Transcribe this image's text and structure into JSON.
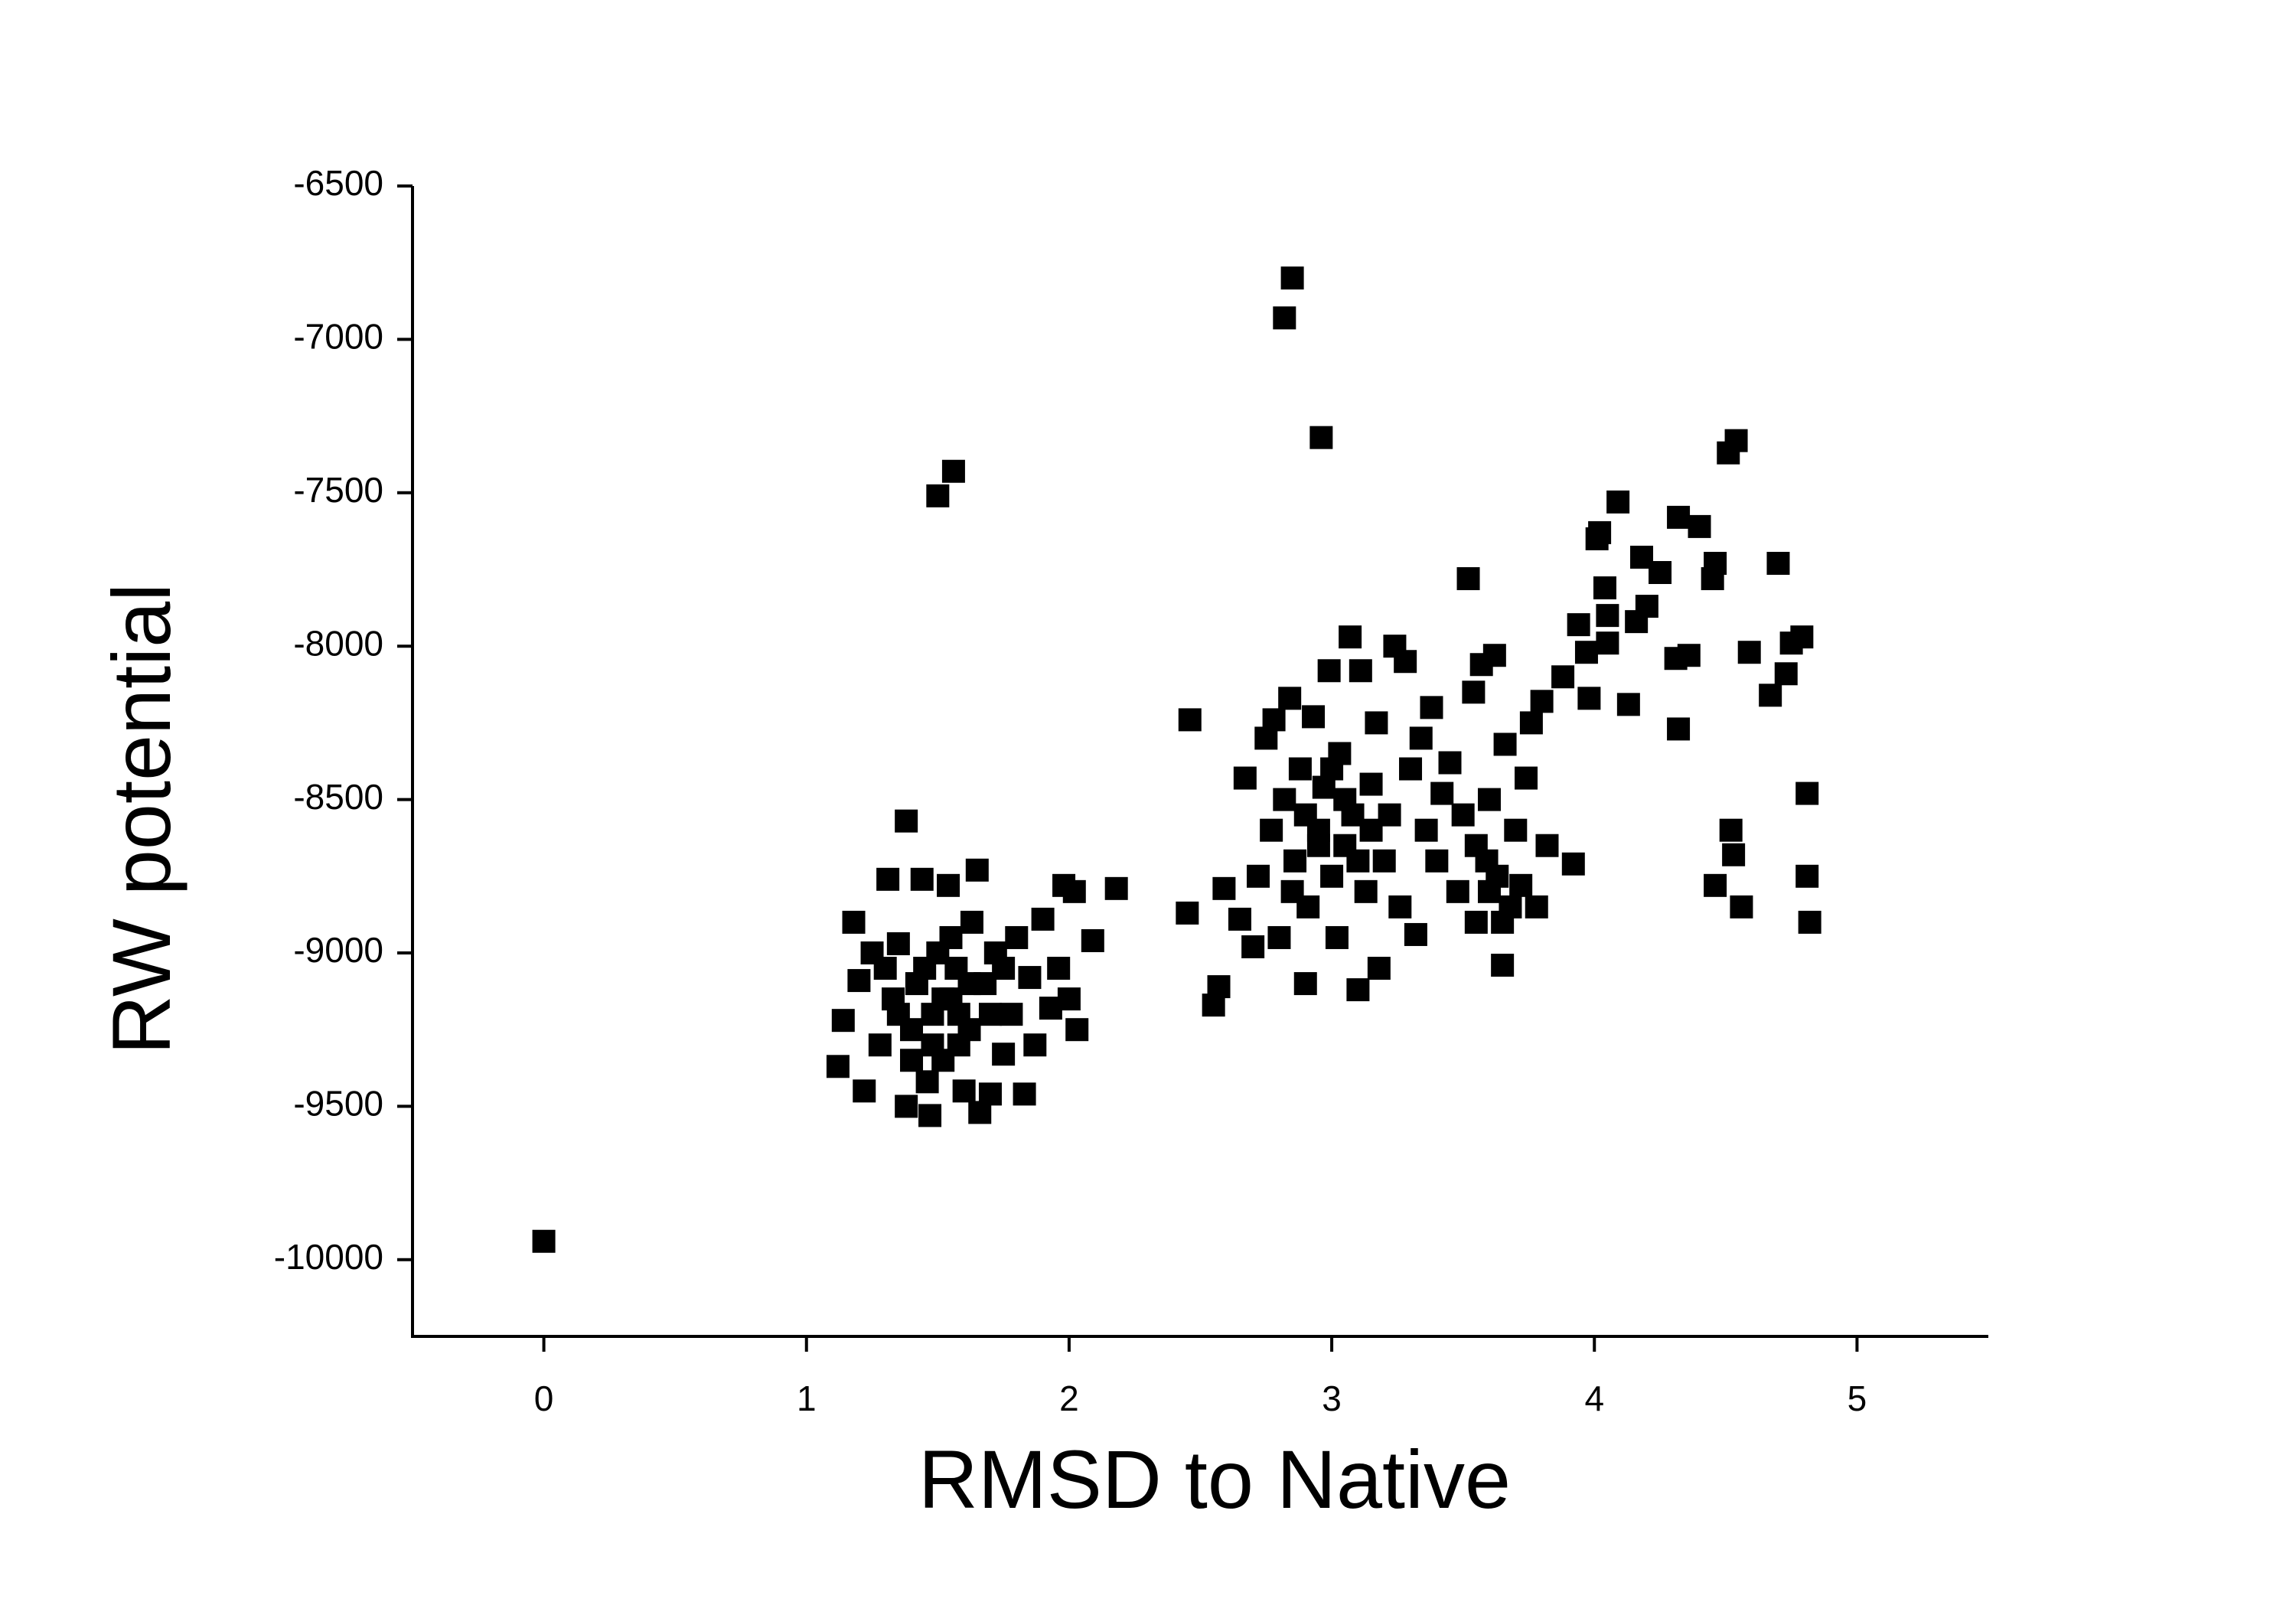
{
  "chart_data": {
    "type": "scatter",
    "xlabel": "RMSD to Native",
    "ylabel": "RW potential",
    "color": "#000000",
    "xlim": [
      -0.5,
      5.5
    ],
    "xticks": [
      0,
      1,
      2,
      3,
      4,
      5
    ],
    "ylim": [
      -10250,
      -6500
    ],
    "yticks": [
      -10000,
      -9500,
      -9000,
      -8500,
      -8000,
      -7500,
      -7000,
      -6500
    ],
    "x": [
      0,
      1.5,
      1.56,
      2.82,
      2.85,
      2.96,
      1.38,
      2.46,
      2.45,
      2.55,
      2.57,
      1.12,
      1.14,
      1.18,
      1.22,
      1.2,
      1.25,
      1.28,
      1.31,
      1.33,
      1.35,
      1.38,
      1.4,
      1.42,
      1.44,
      1.46,
      1.47,
      1.48,
      1.5,
      1.52,
      1.54,
      1.55,
      1.57,
      1.58,
      1.6,
      1.62,
      1.63,
      1.65,
      1.66,
      1.68,
      1.7,
      1.72,
      1.75,
      1.78,
      1.8,
      1.83,
      1.85,
      1.87,
      1.9,
      1.93,
      1.96,
      1.98,
      2.0,
      2.02,
      2.03,
      2.09,
      2.18,
      1.45,
      1.52,
      1.58,
      1.62,
      1.48,
      1.55,
      1.4,
      1.7,
      1.35,
      1.3,
      1.75,
      2.59,
      2.65,
      2.67,
      2.7,
      2.72,
      2.75,
      2.77,
      2.78,
      2.8,
      2.82,
      2.84,
      2.86,
      2.88,
      2.9,
      2.91,
      2.93,
      2.95,
      2.97,
      2.99,
      3.0,
      3.02,
      3.03,
      3.05,
      3.07,
      3.08,
      3.1,
      3.11,
      3.13,
      3.15,
      3.17,
      3.18,
      3.2,
      3.22,
      3.24,
      3.26,
      3.28,
      3.3,
      3.32,
      3.34,
      3.36,
      3.38,
      3.4,
      3.42,
      3.45,
      3.48,
      3.5,
      3.52,
      3.54,
      3.55,
      3.57,
      3.59,
      3.6,
      3.62,
      3.63,
      3.65,
      3.66,
      3.68,
      3.7,
      3.72,
      3.74,
      3.76,
      3.78,
      3.8,
      3.82,
      2.95,
      3.05,
      2.9,
      3.1,
      3.0,
      2.85,
      3.15,
      3.6,
      3.55,
      3.65,
      3.88,
      3.92,
      3.94,
      3.97,
      3.98,
      4.01,
      4.02,
      4.04,
      4.05,
      4.05,
      4.09,
      4.13,
      4.16,
      4.18,
      4.2,
      4.25,
      4.31,
      4.32,
      4.32,
      4.36,
      4.4,
      4.45,
      4.46,
      4.46,
      4.51,
      4.52,
      4.53,
      4.54,
      4.56,
      4.59,
      4.67,
      4.7,
      4.73,
      4.75,
      4.79,
      4.81,
      4.81,
      4.82
    ],
    "values": [
      -9940,
      -7510,
      -7430,
      -6930,
      -6800,
      -7320,
      -8570,
      -8240,
      -8870,
      -9170,
      -9110,
      -9370,
      -9220,
      -8900,
      -9450,
      -9090,
      -9000,
      -9300,
      -8760,
      -9150,
      -8970,
      -9500,
      -9250,
      -9100,
      -8760,
      -9420,
      -9530,
      -9200,
      -9000,
      -9350,
      -8780,
      -9150,
      -9050,
      -9300,
      -9450,
      -9250,
      -8900,
      -8730,
      -9520,
      -9100,
      -9460,
      -9000,
      -9330,
      -9200,
      -8950,
      -9460,
      -9080,
      -9300,
      -8890,
      -9180,
      -9050,
      -8780,
      -9150,
      -8800,
      -9250,
      -8960,
      -8790,
      -9050,
      -9150,
      -9200,
      -9100,
      -9300,
      -8950,
      -9350,
      -9200,
      -9200,
      -9050,
      -9050,
      -8790,
      -8890,
      -8430,
      -8980,
      -8750,
      -8300,
      -8600,
      -8240,
      -8950,
      -8500,
      -8170,
      -8700,
      -8400,
      -9100,
      -8850,
      -8230,
      -8600,
      -8460,
      -8080,
      -8750,
      -8950,
      -8350,
      -8650,
      -7970,
      -8550,
      -9120,
      -8080,
      -8800,
      -8450,
      -8250,
      -9050,
      -8700,
      -8550,
      -8000,
      -8850,
      -8050,
      -8400,
      -8940,
      -8300,
      -8600,
      -8200,
      -8700,
      -8480,
      -8380,
      -8800,
      -8550,
      -7780,
      -8150,
      -8900,
      -8060,
      -8700,
      -8500,
      -8030,
      -8750,
      -9040,
      -8320,
      -8850,
      -8600,
      -8780,
      -8430,
      -8250,
      -8850,
      -8180,
      -8650,
      -8650,
      -8500,
      -8550,
      -8700,
      -8400,
      -8800,
      -8600,
      -8800,
      -8650,
      -8900,
      -8100,
      -8710,
      -7930,
      -8020,
      -8170,
      -7650,
      -7630,
      -7810,
      -7900,
      -7990,
      -7530,
      -8190,
      -7920,
      -7710,
      -7870,
      -7760,
      -8040,
      -8270,
      -7580,
      -8030,
      -7610,
      -7780,
      -8780,
      -7730,
      -7370,
      -8600,
      -8680,
      -7330,
      -8850,
      -8020,
      -8160,
      -7730,
      -8090,
      -7990,
      -7970,
      -8480,
      -8750,
      -8900
    ]
  }
}
